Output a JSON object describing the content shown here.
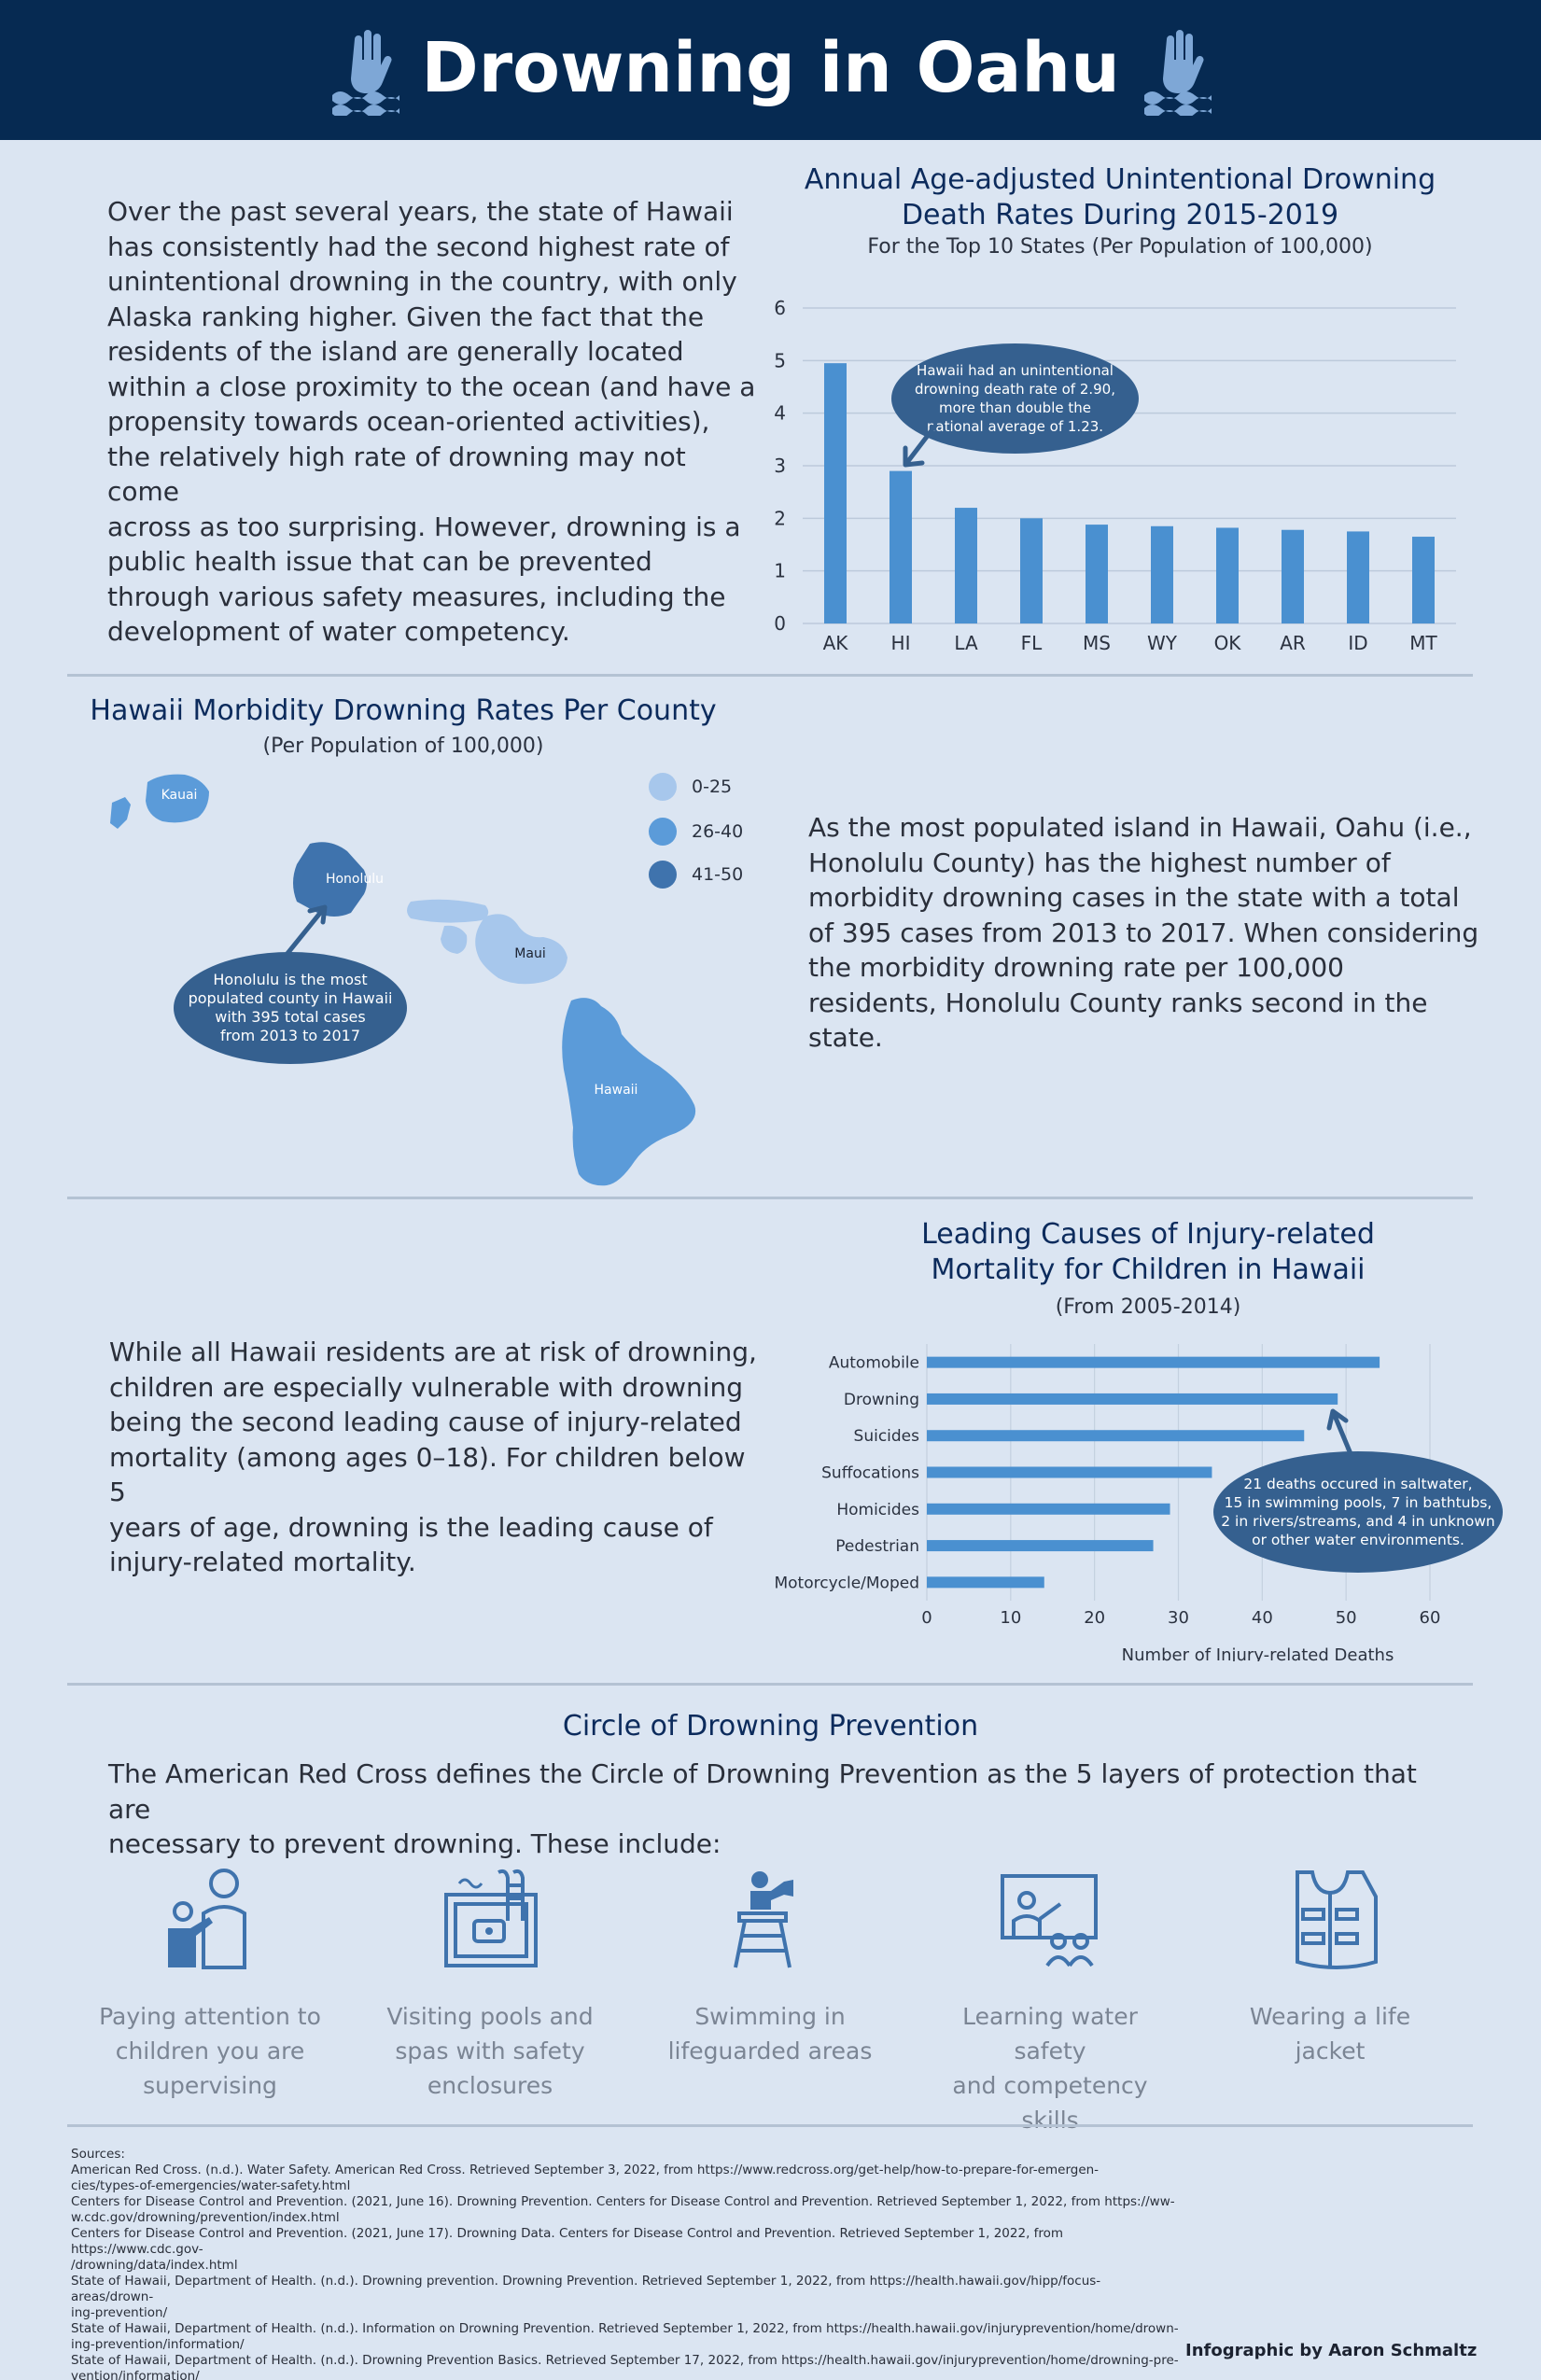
{
  "header": {
    "title": "Drowning in Oahu",
    "left_icon": "drowning-hand-icon",
    "right_icon": "drowning-hand-icon"
  },
  "colors": {
    "header_bg": "#062a52",
    "page_bg": "#dbe5f2",
    "bar": "#4a90d0",
    "callout": "#35608f",
    "light_blue": "#a7c7ec",
    "mid_blue": "#5b9bd9",
    "dark_blue": "#3f73ad"
  },
  "intro": {
    "lines": [
      "Over the past several years, the state of Hawaii",
      "has consistently had the second highest rate of",
      "unintentional drowning in the country, with only",
      "Alaska ranking higher. Given the fact that the",
      "residents of the island are generally located",
      "within a close proximity to the ocean (and have a",
      "propensity towards ocean-oriented activities),",
      "the relatively high rate of drowning may not come",
      "across as too surprising. However, drowning is a",
      "public health issue that can be prevented",
      "through various safety measures, including the",
      "development of water competency."
    ]
  },
  "chart_data": [
    {
      "type": "bar",
      "title_lines": [
        "Annual Age-adjusted Unintentional Drowning",
        "Death Rates During 2015-2019"
      ],
      "subtitle": "For the Top 10 States (Per Population of 100,000)",
      "categories": [
        "AK",
        "HI",
        "LA",
        "FL",
        "MS",
        "WY",
        "OK",
        "AR",
        "ID",
        "MT"
      ],
      "values": [
        4.95,
        2.9,
        2.2,
        2.0,
        1.88,
        1.85,
        1.82,
        1.78,
        1.75,
        1.65
      ],
      "ylim": [
        0,
        6
      ],
      "yticks": [
        "0",
        "1",
        "2",
        "3",
        "4",
        "5",
        "6"
      ],
      "grid": true,
      "annotation": {
        "target": "HI",
        "lines": [
          "Hawaii had an unintentional",
          "drowning death rate of 2.90,",
          "more than double the",
          "national average of 1.23."
        ]
      }
    },
    {
      "type": "bar",
      "orientation": "horizontal",
      "title_lines": [
        "Leading Causes of Injury-related",
        "Mortality for Children in Hawaii"
      ],
      "subtitle": "(From 2005-2014)",
      "categories": [
        "Automobile",
        "Drowning",
        "Suicides",
        "Suffocations",
        "Homicides",
        "Pedestrian",
        "Motorcycle/Moped"
      ],
      "values": [
        54,
        49,
        45,
        34,
        29,
        27,
        14
      ],
      "xlim": [
        0,
        60
      ],
      "xticks": [
        "0",
        "10",
        "20",
        "30",
        "40",
        "50",
        "60"
      ],
      "xlabel": "Number of Injury-related Deaths",
      "grid": true,
      "annotation": {
        "target": "Drowning",
        "lines": [
          "21 deaths occured in saltwater,",
          "15 in swimming pools, 7 in bathtubs,",
          "2 in rivers/streams, and 4 in unknown",
          "or other water environments."
        ]
      }
    }
  ],
  "map": {
    "title": "Hawaii Morbidity Drowning Rates Per County",
    "subtitle": "(Per Population of 100,000)",
    "legend": [
      {
        "label": "0-25",
        "color": "#a7c7ec"
      },
      {
        "label": "26-40",
        "color": "#5b9bd9"
      },
      {
        "label": "41-50",
        "color": "#3f73ad"
      }
    ],
    "islands": {
      "kauai": "Kauai",
      "honolulu": "Honolulu",
      "maui": "Maui",
      "hawaii": "Hawaii"
    },
    "callout_lines": [
      "Honolulu is the most",
      "populated county in Hawaii",
      "with 395 total cases",
      "from 2013 to 2017"
    ],
    "side_text": [
      "As the most populated island in Hawaii, Oahu (i.e.,",
      "Honolulu County) has the highest number of",
      "morbidity drowning cases in the state with a total",
      "of 395 cases from 2013 to 2017. When considering",
      "the morbidity drowning rate per 100,000",
      "residents, Honolulu County ranks second in the",
      "state."
    ]
  },
  "children_text": [
    "While all Hawaii residents are at risk of drowning,",
    "children are especially vulnerable with drowning",
    "being the second leading cause of injury-related",
    "mortality (among ages 0–18). For children below 5",
    "years of age, drowning is the leading cause of",
    "injury-related mortality."
  ],
  "prevention": {
    "title": "Circle of Drowning Prevention",
    "intro_lines": [
      "The American Red Cross defines the Circle of Drowning Prevention as the 5 layers of protection that are",
      "necessary to prevent drowning. These include:"
    ],
    "layers": [
      {
        "icon": "adult-supervising-child-icon",
        "lines": [
          "Paying attention to",
          "children you are",
          "supervising"
        ]
      },
      {
        "icon": "pool-enclosure-icon",
        "lines": [
          "Visiting pools and",
          "spas with safety",
          "enclosures"
        ]
      },
      {
        "icon": "lifeguard-tower-icon",
        "lines": [
          "Swimming in",
          "lifeguarded areas"
        ]
      },
      {
        "icon": "classroom-lesson-icon",
        "lines": [
          "Learning water safety",
          "and competency skills"
        ]
      },
      {
        "icon": "life-jacket-icon",
        "lines": [
          "Wearing a life jacket"
        ]
      }
    ]
  },
  "sources": {
    "heading": "Sources:",
    "lines": [
      "American Red Cross. (n.d.). Water Safety. American Red Cross. Retrieved September 3, 2022, from https://www.redcross.org/get-help/how-to-prepare-for-emergen-",
      "cies/types-of-emergencies/water-safety.html",
      "Centers for Disease Control and Prevention. (2021, June 16). Drowning Prevention. Centers for Disease Control and Prevention. Retrieved September 1, 2022, from https://ww-",
      "w.cdc.gov/drowning/prevention/index.html",
      "Centers for Disease Control and Prevention. (2021, June 17). Drowning Data. Centers for Disease Control and Prevention. Retrieved September 1, 2022, from https://www.cdc.gov-",
      "/drowning/data/index.html",
      "State of Hawaii, Department of Health. (n.d.). Drowning prevention. Drowning Prevention. Retrieved September 1, 2022, from https://health.hawaii.gov/hipp/focus-areas/drown-",
      "ing-prevention/",
      "State of Hawaii, Department of Health. (n.d.). Information on Drowning Prevention. Retrieved September 1, 2022, from https://health.hawaii.gov/injuryprevention/home/drown-",
      "ing-prevention/information/",
      "State of Hawaii, Department of Health. (n.d.). Drowning Prevention Basics. Retrieved September 17, 2022, from https://health.hawaii.gov/injuryprevention/home/drowning-pre-",
      "vention/information/"
    ]
  },
  "credit": "Infographic by Aaron Schmaltz"
}
